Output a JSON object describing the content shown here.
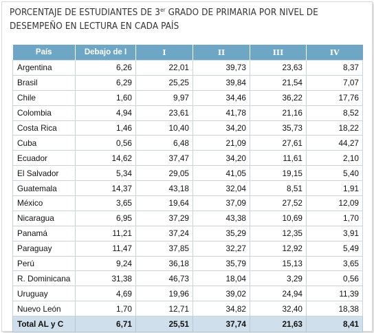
{
  "title": {
    "line1_a": "PORCENTAJE DE ESTUDIANTES DE 3",
    "line1_sup": "er",
    "line1_b": " GRADO DE PRIMARIA POR NIVEL DE",
    "line2": "DESEMPEÑO EN LECTURA EN CADA PAÍS"
  },
  "table": {
    "headers": [
      "País",
      "Debajo de I",
      "I",
      "II",
      "III",
      "IV"
    ],
    "rows": [
      [
        "Argentina",
        "6,26",
        "22,01",
        "39,73",
        "23,63",
        "8,37"
      ],
      [
        "Brasil",
        "6,29",
        "25,25",
        "39,84",
        "21,54",
        "7,07"
      ],
      [
        "Chile",
        "1,60",
        "9,97",
        "34,46",
        "36,22",
        "17,76"
      ],
      [
        "Colombia",
        "4,94",
        "23,61",
        "41,78",
        "21,16",
        "8,52"
      ],
      [
        "Costa Rica",
        "1,46",
        "10,40",
        "34,20",
        "35,73",
        "18,22"
      ],
      [
        "Cuba",
        "0,56",
        "6,48",
        "21,09",
        "27,61",
        "44,27"
      ],
      [
        "Ecuador",
        "14,62",
        "37,47",
        "34,20",
        "11,61",
        "2,10"
      ],
      [
        "El Salvador",
        "5,34",
        "29,05",
        "41,05",
        "19,15",
        "5,40"
      ],
      [
        "Guatemala",
        "14,37",
        "43,18",
        "32,04",
        "8,51",
        "1,91"
      ],
      [
        "México",
        "3,65",
        "19,64",
        "37,09",
        "27,52",
        "12,09"
      ],
      [
        "Nicaragua",
        "6,95",
        "37,29",
        "43,38",
        "10,69",
        "1,70"
      ],
      [
        "Panamá",
        "11,21",
        "37,24",
        "35,29",
        "12,35",
        "3,91"
      ],
      [
        "Paraguay",
        "11,47",
        "37,85",
        "32,27",
        "12,92",
        "5,49"
      ],
      [
        "Perú",
        "9,24",
        "36,18",
        "35,79",
        "15,13",
        "3,65"
      ],
      [
        "R. Dominicana",
        "31,38",
        "46,73",
        "18,04",
        "3,29",
        "0,56"
      ],
      [
        "Uruguay",
        "4,69",
        "19,96",
        "39,02",
        "24,94",
        "11,39"
      ],
      [
        "Nuevo León",
        "1,70",
        "12,71",
        "34,82",
        "32,40",
        "18,38"
      ]
    ],
    "total": [
      "Total AL y C",
      "6,71",
      "25,51",
      "37,74",
      "21,63",
      "8,41"
    ]
  },
  "colors": {
    "header_bg": "#6ea7c6",
    "total_bg": "#cfe0ec"
  }
}
